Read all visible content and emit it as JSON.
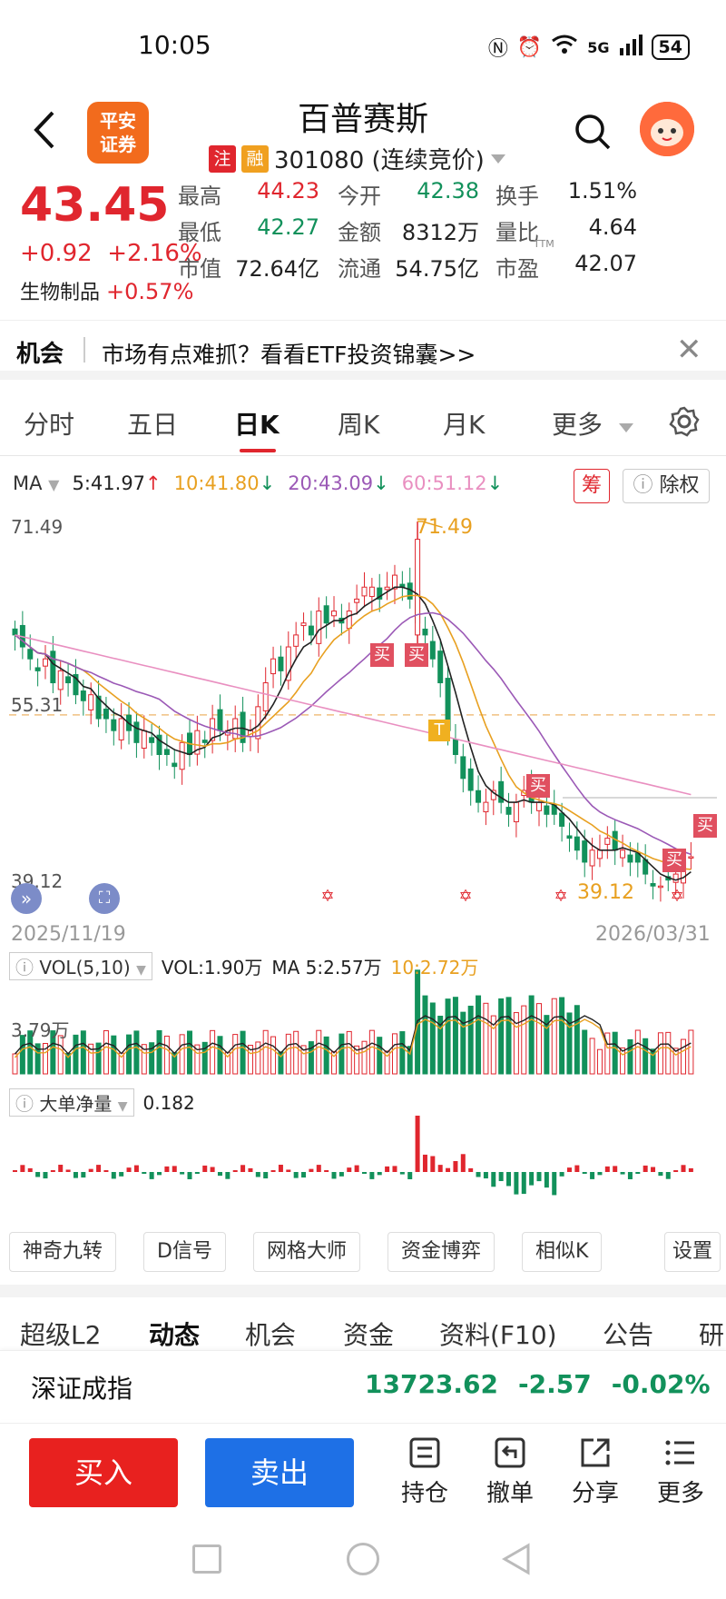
{
  "status_bar": {
    "time": "10:05",
    "network": "5G",
    "battery": "54"
  },
  "header": {
    "broker_logo": [
      "平安",
      "证券"
    ],
    "stock_name": "百普赛斯",
    "tag_register": "注",
    "tag_margin": "融",
    "code_status": "301080 (连续竞价)"
  },
  "quote": {
    "price": "43.45",
    "change_abs": "+0.92",
    "change_pct": "+2.16%",
    "sector": "生物制品",
    "sector_pct": "+0.57%",
    "cells": [
      {
        "label": "最高",
        "value": "44.23",
        "color": "#e0262e"
      },
      {
        "label": "今开",
        "value": "42.38",
        "color": "#12915b"
      },
      {
        "label": "换手",
        "value": "1.51%",
        "color": "#222222"
      },
      {
        "label": "最低",
        "value": "42.27",
        "color": "#12915b"
      },
      {
        "label": "金额",
        "value": "8312万",
        "color": "#222222"
      },
      {
        "label": "量比",
        "value": "4.64",
        "color": "#222222"
      },
      {
        "label": "市值",
        "value": "72.64亿",
        "color": "#222222"
      },
      {
        "label": "流通",
        "value": "54.75亿",
        "color": "#222222"
      },
      {
        "label": "市盈",
        "value": "42.07",
        "color": "#222222"
      }
    ],
    "pe_superscript": "TTM"
  },
  "opportunity": {
    "title": "机会",
    "text": "市场有点难抓？看看ETF投资锦囊>>"
  },
  "period_tabs": [
    "分时",
    "五日",
    "日K",
    "周K",
    "月K",
    "更多"
  ],
  "active_tab": "日K",
  "ma_row": {
    "label": "MA",
    "ma5": "5:41.97",
    "ma10": "10:41.80",
    "ma20": "20:43.09",
    "ma60": "60:51.12",
    "arrow_up": "↑",
    "arrow_down": "↓",
    "chips": "筹",
    "rights": "除权"
  },
  "chart_labels": {
    "y_high": "71.49",
    "y_mid": "55.31",
    "y_low": "39.12",
    "max_marker": "71.49",
    "min_marker": "39.12",
    "date_start": "2025/11/19",
    "date_end": "2026/03/31",
    "buy_mark": "买",
    "t_mark": "T"
  },
  "volume": {
    "selector": "VOL(5,10)",
    "readout": "VOL:1.90万",
    "ma5": "MA 5:2.57万",
    "ma10": "10:2.72万",
    "y_label": "3.79万"
  },
  "bigorder": {
    "selector": "大单净量",
    "value": "0.182"
  },
  "tools": [
    "神奇九转",
    "D信号",
    "网格大师",
    "资金博弈",
    "相似K"
  ],
  "settings": "设置",
  "news_tabs": [
    "超级L2",
    "动态",
    "机会",
    "资金",
    "资料(F10)",
    "公告",
    "研"
  ],
  "active_news_tab": "动态",
  "index": {
    "name": "深证成指",
    "value": "13723.62",
    "change": "-2.57",
    "pct": "-0.02%"
  },
  "trade": {
    "buy": "买入",
    "sell": "卖出"
  },
  "actions": [
    "持仓",
    "撤单",
    "分享",
    "更多"
  ],
  "colors": {
    "up": "#e0262e",
    "down": "#12915b",
    "ma5": "#222222",
    "ma10": "#e8a020",
    "ma20": "#9b59b6",
    "ma60": "#e98fc0"
  }
}
